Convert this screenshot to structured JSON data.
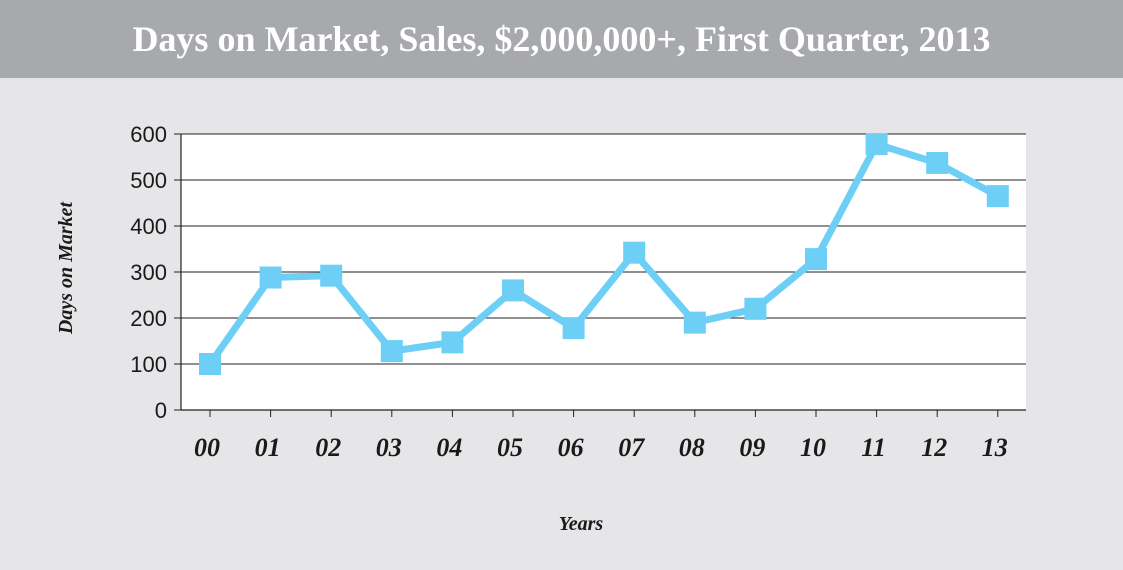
{
  "title": "Days on Market, Sales, $2,000,000+, First Quarter, 2013",
  "colors": {
    "title_bar": "#a7a9ac",
    "background": "#e6e6e8",
    "plot_area": "#ffffff",
    "series": "#6dcff6",
    "gridline": "#231f20"
  },
  "chart_data": {
    "type": "line",
    "title": "Days on Market, Sales, $2,000,000+, First Quarter, 2013",
    "xlabel": "Years",
    "ylabel": "Days on Market",
    "categories": [
      "00",
      "01",
      "02",
      "03",
      "04",
      "05",
      "06",
      "07",
      "08",
      "09",
      "10",
      "11",
      "12",
      "13"
    ],
    "series": [
      {
        "values": [
          100,
          288,
          292,
          128,
          147,
          260,
          178,
          342,
          190,
          220,
          328,
          578,
          537,
          465
        ],
        "marker": "square"
      }
    ],
    "ylim": [
      0,
      600
    ],
    "yticks": [
      "0",
      "100",
      "200",
      "300",
      "400",
      "500",
      "600"
    ],
    "grid": "horizontal",
    "legend": "none"
  }
}
